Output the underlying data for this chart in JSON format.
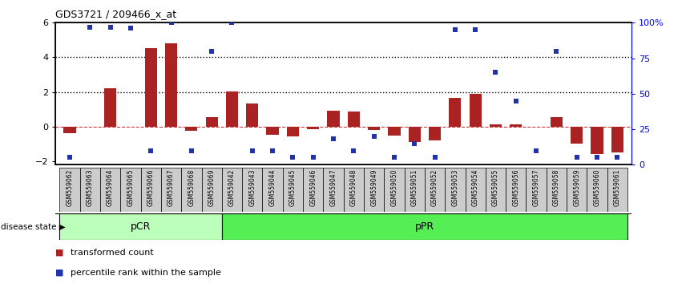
{
  "title": "GDS3721 / 209466_x_at",
  "samples": [
    "GSM559062",
    "GSM559063",
    "GSM559064",
    "GSM559065",
    "GSM559066",
    "GSM559067",
    "GSM559068",
    "GSM559069",
    "GSM559042",
    "GSM559043",
    "GSM559044",
    "GSM559045",
    "GSM559046",
    "GSM559047",
    "GSM559048",
    "GSM559049",
    "GSM559050",
    "GSM559051",
    "GSM559052",
    "GSM559053",
    "GSM559054",
    "GSM559055",
    "GSM559056",
    "GSM559057",
    "GSM559058",
    "GSM559059",
    "GSM559060",
    "GSM559061"
  ],
  "transformed_count": [
    -0.4,
    0.0,
    2.2,
    0.0,
    4.55,
    4.8,
    -0.25,
    0.55,
    2.05,
    1.35,
    -0.45,
    -0.55,
    -0.15,
    0.9,
    0.85,
    -0.2,
    -0.5,
    -0.9,
    -0.8,
    1.65,
    1.9,
    0.15,
    0.15,
    0.0,
    0.55,
    -1.0,
    -1.6,
    -1.5
  ],
  "percentile_rank": [
    5,
    97,
    97,
    96,
    10,
    100,
    10,
    80,
    100,
    10,
    10,
    5,
    5,
    18,
    10,
    20,
    5,
    15,
    5,
    95,
    95,
    65,
    45,
    10,
    80,
    5,
    5,
    5
  ],
  "pcr_count": 8,
  "ppr_count": 20,
  "ylim": [
    -2.2,
    6.0
  ],
  "yticks_left": [
    -2,
    0,
    2,
    4,
    6
  ],
  "yticks_right": [
    0,
    25,
    50,
    75,
    100
  ],
  "dotted_lines": [
    2.0,
    4.0
  ],
  "bar_color": "#aa2222",
  "dot_color": "#2233aa",
  "pcr_color": "#bbffbb",
  "ppr_color": "#55ee55",
  "legend_items": [
    "transformed count",
    "percentile rank within the sample"
  ]
}
